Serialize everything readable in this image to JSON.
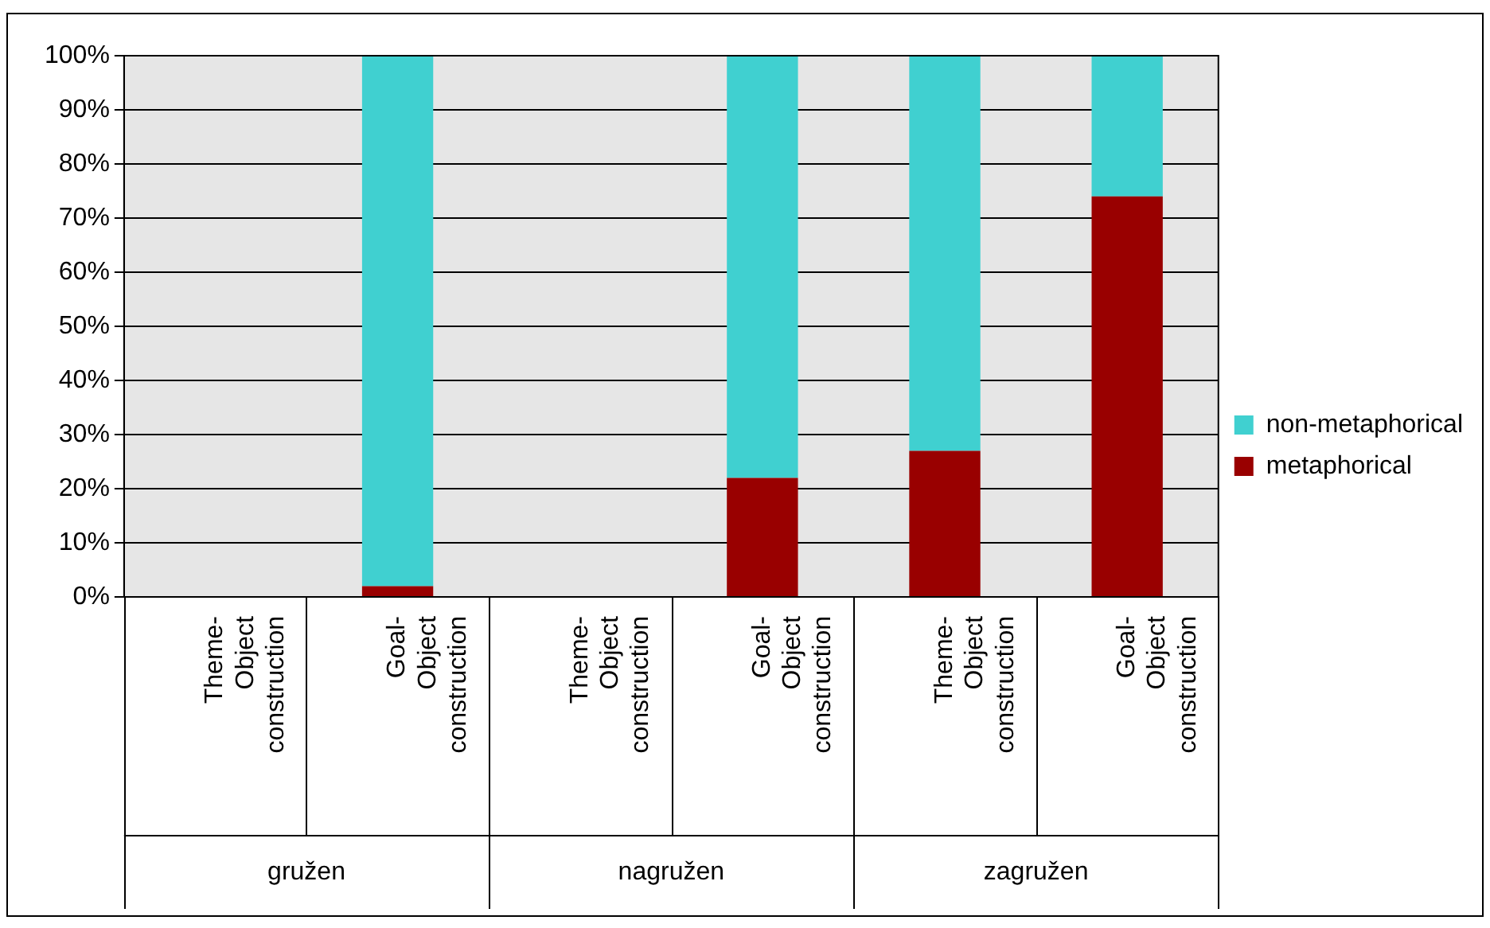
{
  "chart_data": {
    "type": "bar",
    "stacked": true,
    "categories": [
      "Theme-Object construction",
      "Goal-Object construction",
      "Theme-Object construction",
      "Goal-Object construction",
      "Theme-Object construction",
      "Goal-Object construction"
    ],
    "series": [
      {
        "name": "metaphorical",
        "color": "#990000",
        "values": [
          null,
          2,
          null,
          22,
          27,
          74
        ]
      },
      {
        "name": "non-metaphorical",
        "color": "#40d0d0",
        "values": [
          null,
          98,
          null,
          78,
          73,
          26
        ]
      }
    ],
    "ylim": [
      0,
      100
    ],
    "yticks": [
      {
        "value": 0,
        "label": "0%"
      },
      {
        "value": 10,
        "label": "10%"
      },
      {
        "value": 20,
        "label": "20%"
      },
      {
        "value": 30,
        "label": "30%"
      },
      {
        "value": 40,
        "label": "40%"
      },
      {
        "value": 50,
        "label": "50%"
      },
      {
        "value": 60,
        "label": "60%"
      },
      {
        "value": 70,
        "label": "70%"
      },
      {
        "value": 80,
        "label": "80%"
      },
      {
        "value": 90,
        "label": "90%"
      },
      {
        "value": 100,
        "label": "100%"
      }
    ],
    "grid": "y",
    "legend": "right",
    "annotations": [
      "gružen",
      "nagružen",
      "zagružen"
    ]
  }
}
